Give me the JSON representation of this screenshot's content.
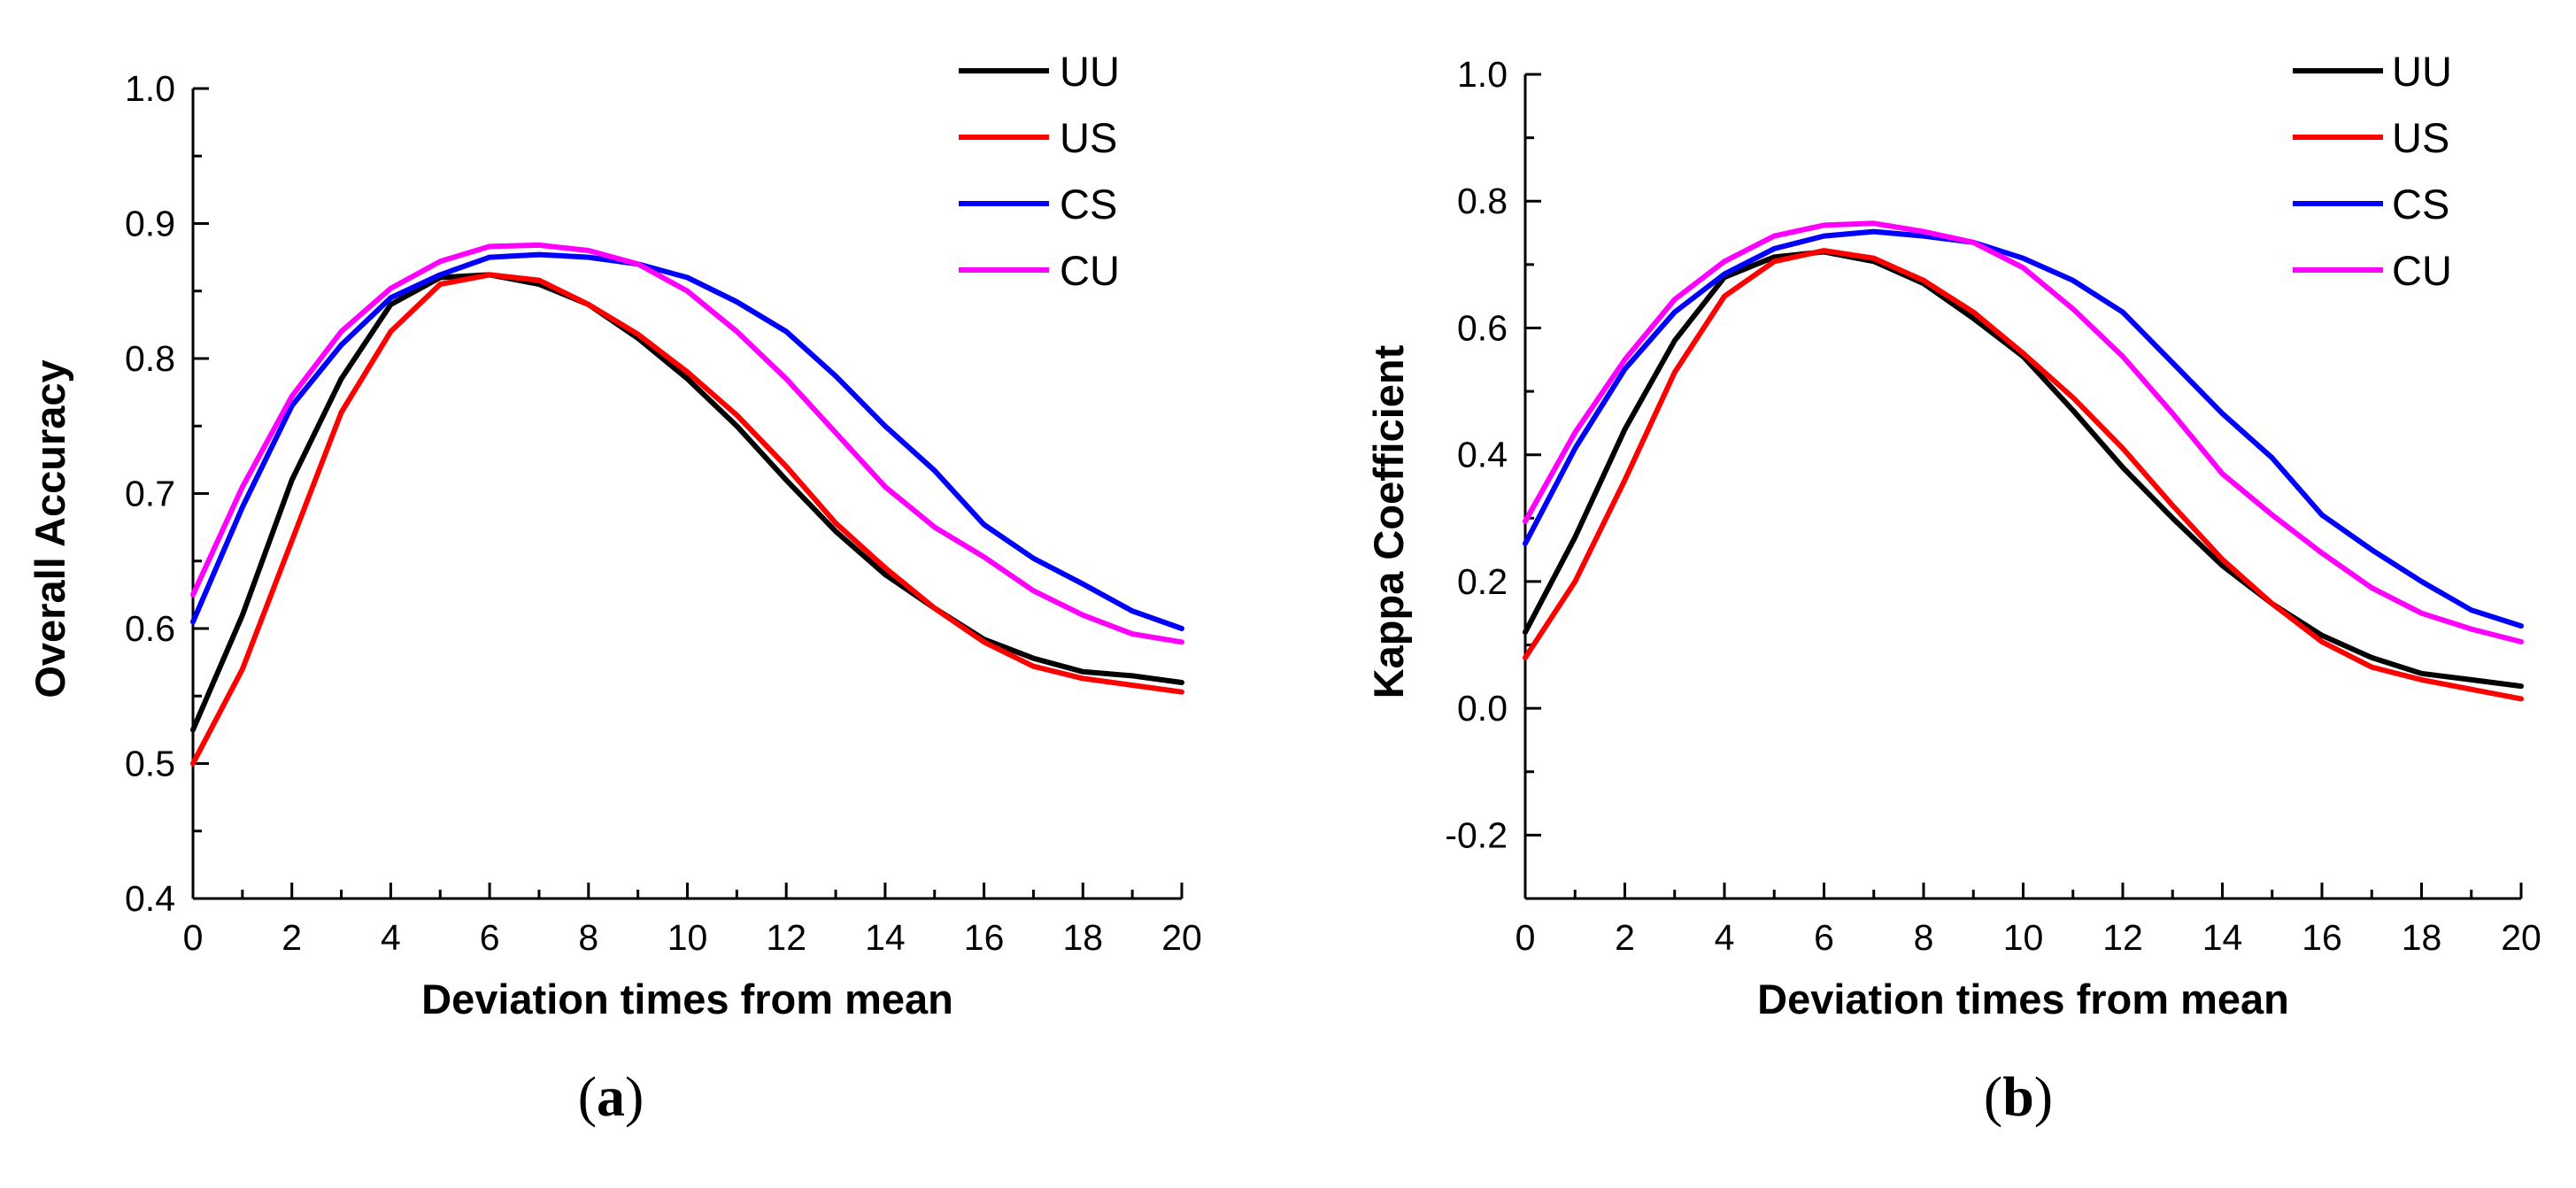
{
  "chart_data": [
    {
      "type": "line",
      "panel_label": "a",
      "xlabel": "Deviation times from mean",
      "ylabel": "Overall Accuracy",
      "xlim": [
        0,
        20
      ],
      "ylim": [
        0.4,
        1.0
      ],
      "x_ticks": [
        0,
        2,
        4,
        6,
        8,
        10,
        12,
        14,
        16,
        18,
        20
      ],
      "y_ticks": [
        "0.4",
        "0.5",
        "0.6",
        "0.7",
        "0.8",
        "0.9",
        "1.0"
      ],
      "grid": false,
      "legend_position": "top-right",
      "x": [
        0,
        1,
        2,
        3,
        4,
        5,
        6,
        7,
        8,
        9,
        10,
        11,
        12,
        13,
        14,
        15,
        16,
        17,
        18,
        19,
        20
      ],
      "series": [
        {
          "name": "UU",
          "color": "#000000",
          "values": [
            0.525,
            0.61,
            0.71,
            0.785,
            0.84,
            0.86,
            0.862,
            0.855,
            0.84,
            0.815,
            0.785,
            0.75,
            0.71,
            0.672,
            0.64,
            0.615,
            0.592,
            0.578,
            0.568,
            0.565,
            0.56
          ]
        },
        {
          "name": "US",
          "color": "#ff0000",
          "values": [
            0.5,
            0.57,
            0.665,
            0.76,
            0.82,
            0.855,
            0.862,
            0.858,
            0.84,
            0.818,
            0.79,
            0.758,
            0.72,
            0.678,
            0.645,
            0.615,
            0.59,
            0.572,
            0.563,
            0.558,
            0.553
          ]
        },
        {
          "name": "CS",
          "color": "#0000ff",
          "values": [
            0.605,
            0.69,
            0.765,
            0.81,
            0.845,
            0.862,
            0.875,
            0.877,
            0.875,
            0.87,
            0.86,
            0.842,
            0.82,
            0.787,
            0.75,
            0.717,
            0.677,
            0.652,
            0.633,
            0.613,
            0.6
          ]
        },
        {
          "name": "CU",
          "color": "#ff00ff",
          "values": [
            0.625,
            0.705,
            0.772,
            0.82,
            0.852,
            0.872,
            0.883,
            0.884,
            0.88,
            0.87,
            0.85,
            0.82,
            0.785,
            0.745,
            0.705,
            0.675,
            0.653,
            0.628,
            0.61,
            0.596,
            0.59
          ]
        }
      ]
    },
    {
      "type": "line",
      "panel_label": "b",
      "xlabel": "Deviation times from mean",
      "ylabel": "Kappa Coefficient",
      "xlim": [
        0,
        20
      ],
      "ylim": [
        -0.3,
        1.0
      ],
      "x_ticks": [
        0,
        2,
        4,
        6,
        8,
        10,
        12,
        14,
        16,
        18,
        20
      ],
      "y_ticks": [
        "-0.2",
        "0.0",
        "0.2",
        "0.4",
        "0.6",
        "0.8",
        "1.0"
      ],
      "grid": false,
      "legend_position": "top-right",
      "x": [
        0,
        1,
        2,
        3,
        4,
        5,
        6,
        7,
        8,
        9,
        10,
        11,
        12,
        13,
        14,
        15,
        16,
        17,
        18,
        19,
        20
      ],
      "series": [
        {
          "name": "UU",
          "color": "#000000",
          "values": [
            0.12,
            0.27,
            0.44,
            0.58,
            0.68,
            0.712,
            0.72,
            0.705,
            0.67,
            0.615,
            0.555,
            0.47,
            0.38,
            0.3,
            0.225,
            0.165,
            0.115,
            0.08,
            0.055,
            0.045,
            0.035
          ]
        },
        {
          "name": "US",
          "color": "#ff0000",
          "values": [
            0.08,
            0.2,
            0.36,
            0.53,
            0.65,
            0.705,
            0.722,
            0.71,
            0.675,
            0.625,
            0.56,
            0.49,
            0.41,
            0.32,
            0.235,
            0.165,
            0.105,
            0.065,
            0.045,
            0.03,
            0.015
          ]
        },
        {
          "name": "CS",
          "color": "#0000ff",
          "values": [
            0.26,
            0.41,
            0.535,
            0.625,
            0.685,
            0.725,
            0.745,
            0.752,
            0.745,
            0.735,
            0.71,
            0.675,
            0.625,
            0.545,
            0.465,
            0.395,
            0.305,
            0.25,
            0.2,
            0.155,
            0.13
          ]
        },
        {
          "name": "CU",
          "color": "#ff00ff",
          "values": [
            0.295,
            0.435,
            0.55,
            0.645,
            0.705,
            0.745,
            0.762,
            0.765,
            0.752,
            0.735,
            0.695,
            0.63,
            0.555,
            0.465,
            0.37,
            0.305,
            0.245,
            0.19,
            0.15,
            0.125,
            0.105
          ]
        }
      ]
    }
  ]
}
